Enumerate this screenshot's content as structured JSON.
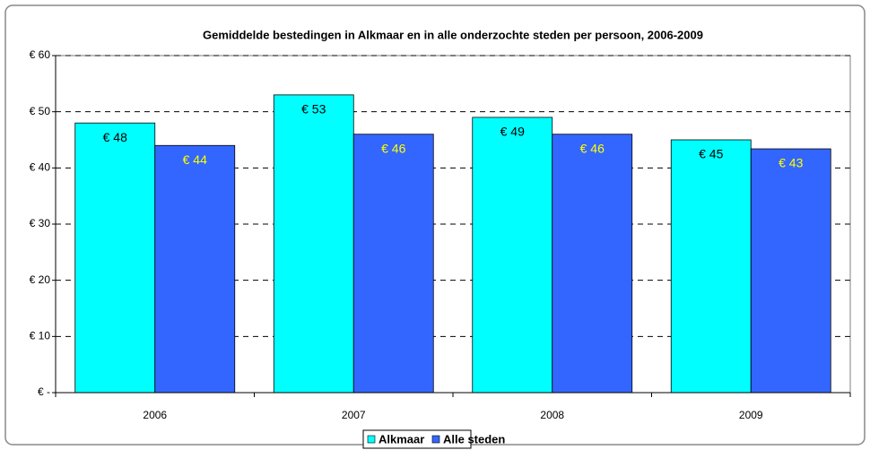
{
  "chart_data": {
    "type": "bar",
    "title": "Gemiddelde bestedingen in Alkmaar en in alle onderzochte steden per persoon, 2006-2009",
    "categories": [
      "2006",
      "2007",
      "2008",
      "2009"
    ],
    "series": [
      {
        "name": "Alkmaar",
        "color": "#00ffff",
        "label_color": "#000000",
        "values": [
          48,
          53,
          49,
          45
        ],
        "value_labels": [
          "€ 48",
          "€ 53",
          "€ 49",
          "€ 45"
        ]
      },
      {
        "name": "Alle steden",
        "color": "#3366ff",
        "label_color": "#ffff00",
        "values": [
          44,
          46,
          46,
          43.4
        ],
        "value_labels": [
          "€ 44",
          "€ 46",
          "€ 46",
          "€ 43"
        ]
      }
    ],
    "ylim": [
      0,
      60
    ],
    "yticks": [
      {
        "value": 0,
        "label": "€ -"
      },
      {
        "value": 10,
        "label": "€ 10"
      },
      {
        "value": 20,
        "label": "€ 20"
      },
      {
        "value": 30,
        "label": "€ 30"
      },
      {
        "value": 40,
        "label": "€ 40"
      },
      {
        "value": 50,
        "label": "€ 50"
      },
      {
        "value": 60,
        "label": "€ 60"
      }
    ],
    "grid": true,
    "legend": "bottom"
  }
}
